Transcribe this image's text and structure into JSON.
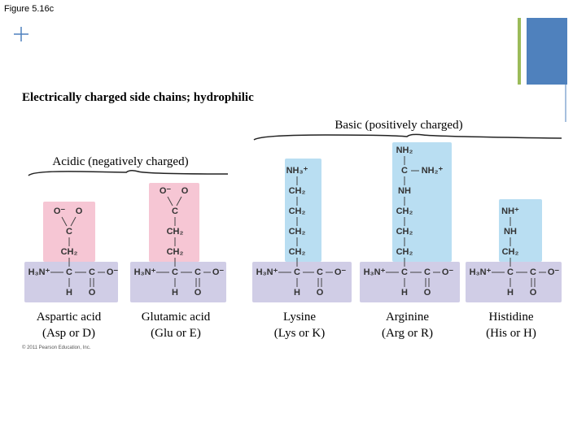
{
  "figure_label": "Figure 5.16c",
  "heading": "Electrically charged side chains; hydrophilic",
  "groups": {
    "basic": "Basic (positively charged)",
    "acidic": "Acidic (negatively charged)"
  },
  "backbone": {
    "amine": "H₃N⁺",
    "alpha": "C",
    "carboxyl": "C",
    "oxide": "O⁻",
    "hydrogen": "H",
    "oxygen": "O"
  },
  "amino_acids": [
    {
      "name": "Aspartic acid",
      "abbreviation": "(Asp or D)",
      "side_chain": [
        [
          "O⁻",
          "O"
        ],
        [
          "C"
        ],
        [
          "CH₂"
        ]
      ]
    },
    {
      "name": "Glutamic acid",
      "abbreviation": "(Glu or E)",
      "side_chain": [
        [
          "O⁻",
          "O"
        ],
        [
          "C"
        ],
        [
          "CH₂"
        ],
        [
          "CH₂"
        ]
      ]
    },
    {
      "name": "Lysine",
      "abbreviation": "(Lys or K)",
      "side_chain": [
        [
          "NH₃⁺"
        ],
        [
          "CH₂"
        ],
        [
          "CH₂"
        ],
        [
          "CH₂"
        ],
        [
          "CH₂"
        ]
      ]
    },
    {
      "name": "Arginine",
      "abbreviation": "(Arg or R)",
      "side_chain": [
        [
          "NH₂"
        ],
        [
          "C",
          "NH₂⁺"
        ],
        [
          "NH"
        ],
        [
          "CH₂"
        ],
        [
          "CH₂"
        ],
        [
          "CH₂"
        ]
      ]
    },
    {
      "name": "Histidine",
      "abbreviation": "(His or H)",
      "side_chain": [
        [
          "NH⁺"
        ],
        [
          "NH"
        ],
        [
          "CH₂"
        ]
      ]
    }
  ],
  "copyright": "© 2011 Pearson Education, Inc."
}
